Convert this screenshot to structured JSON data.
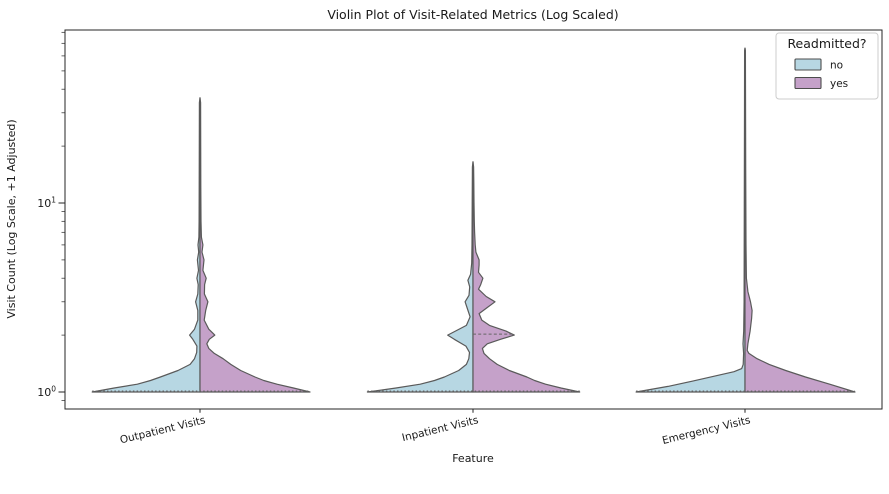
{
  "figure": {
    "title": "Violin Plot of Visit-Related Metrics (Log Scaled)",
    "xlabel": "Feature",
    "ylabel": "Visit Count (Log Scale, +1 Adjusted)"
  },
  "legend": {
    "title": "Readmitted?",
    "entries": [
      {
        "label": "no",
        "color": "#b7d7e3"
      },
      {
        "label": "yes",
        "color": "#c5a1c9"
      }
    ]
  },
  "colors": {
    "violin_edge": "#5a5a5a",
    "axis": "#262626",
    "inner_line": "#666666",
    "legend_border": "#cccccc"
  },
  "chart_data": {
    "type": "violin",
    "title": "Violin Plot of Visit-Related Metrics (Log Scaled)",
    "xlabel": "Feature",
    "ylabel": "Visit Count (Log Scale, +1 Adjusted)",
    "yscale": "log",
    "ylim": [
      0.81,
      82
    ],
    "categories": [
      "Outpatient Visits",
      "Inpatient Visits",
      "Emergency Visits"
    ],
    "groups": [
      "no",
      "yes"
    ],
    "y_axis": {
      "major_ticks": [
        {
          "value": 1,
          "base": "10",
          "exp": "0"
        },
        {
          "value": 10,
          "base": "10",
          "exp": "1"
        }
      ],
      "minor_ticks": [
        0.9,
        2,
        3,
        4,
        5,
        6,
        7,
        8,
        9,
        20,
        30,
        40,
        50,
        60,
        70,
        80
      ]
    },
    "series": [
      {
        "category": "Outpatient Visits",
        "group": "no",
        "side": "left",
        "max_value": 36,
        "profile": [
          [
            1.0,
            0.98
          ],
          [
            1.05,
            0.78
          ],
          [
            1.1,
            0.57
          ],
          [
            1.15,
            0.45
          ],
          [
            1.2,
            0.36
          ],
          [
            1.3,
            0.2
          ],
          [
            1.4,
            0.09
          ],
          [
            1.5,
            0.05
          ],
          [
            1.62,
            0.03
          ],
          [
            1.75,
            0.028
          ],
          [
            1.9,
            0.065
          ],
          [
            2.0,
            0.095
          ],
          [
            2.15,
            0.05
          ],
          [
            2.4,
            0.02
          ],
          [
            2.7,
            0.02
          ],
          [
            3.0,
            0.04
          ],
          [
            3.3,
            0.02
          ],
          [
            3.7,
            0.016
          ],
          [
            4.0,
            0.028
          ],
          [
            4.4,
            0.014
          ],
          [
            5.0,
            0.024
          ],
          [
            5.5,
            0.012
          ],
          [
            6.0,
            0.018
          ],
          [
            6.6,
            0.01
          ],
          [
            8.0,
            0.008
          ],
          [
            12.0,
            0.007
          ],
          [
            20.0,
            0.006
          ],
          [
            34.0,
            0.005
          ],
          [
            36.0,
            0.0
          ]
        ]
      },
      {
        "category": "Outpatient Visits",
        "group": "yes",
        "side": "right",
        "max_value": 36,
        "profile": [
          [
            1.0,
            1.0
          ],
          [
            1.05,
            0.85
          ],
          [
            1.1,
            0.7
          ],
          [
            1.15,
            0.58
          ],
          [
            1.2,
            0.5
          ],
          [
            1.3,
            0.37
          ],
          [
            1.4,
            0.28
          ],
          [
            1.5,
            0.21
          ],
          [
            1.6,
            0.13
          ],
          [
            1.7,
            0.08
          ],
          [
            1.8,
            0.062
          ],
          [
            1.9,
            0.085
          ],
          [
            2.0,
            0.135
          ],
          [
            2.15,
            0.08
          ],
          [
            2.4,
            0.038
          ],
          [
            2.7,
            0.052
          ],
          [
            3.0,
            0.072
          ],
          [
            3.3,
            0.04
          ],
          [
            3.7,
            0.042
          ],
          [
            4.0,
            0.056
          ],
          [
            4.4,
            0.026
          ],
          [
            5.0,
            0.036
          ],
          [
            5.5,
            0.018
          ],
          [
            6.0,
            0.026
          ],
          [
            6.6,
            0.013
          ],
          [
            8.0,
            0.009
          ],
          [
            12.0,
            0.007
          ],
          [
            20.0,
            0.006
          ],
          [
            34.0,
            0.005
          ],
          [
            36.0,
            0.0
          ]
        ]
      },
      {
        "category": "Inpatient Visits",
        "group": "no",
        "side": "left",
        "max_value": 16,
        "profile": [
          [
            1.0,
            0.96
          ],
          [
            1.05,
            0.7
          ],
          [
            1.1,
            0.48
          ],
          [
            1.15,
            0.35
          ],
          [
            1.2,
            0.26
          ],
          [
            1.3,
            0.13
          ],
          [
            1.4,
            0.06
          ],
          [
            1.5,
            0.038
          ],
          [
            1.62,
            0.032
          ],
          [
            1.75,
            0.065
          ],
          [
            1.9,
            0.17
          ],
          [
            2.0,
            0.23
          ],
          [
            2.1,
            0.16
          ],
          [
            2.25,
            0.06
          ],
          [
            2.5,
            0.026
          ],
          [
            2.75,
            0.05
          ],
          [
            3.0,
            0.072
          ],
          [
            3.25,
            0.036
          ],
          [
            3.6,
            0.03
          ],
          [
            3.9,
            0.046
          ],
          [
            4.2,
            0.022
          ],
          [
            4.8,
            0.012
          ],
          [
            6.0,
            0.009
          ],
          [
            10.0,
            0.007
          ],
          [
            15.5,
            0.005
          ],
          [
            16.5,
            0.0
          ]
        ]
      },
      {
        "category": "Inpatient Visits",
        "group": "yes",
        "side": "right",
        "max_value": 16,
        "profile": [
          [
            1.0,
            0.97
          ],
          [
            1.05,
            0.8
          ],
          [
            1.1,
            0.66
          ],
          [
            1.15,
            0.56
          ],
          [
            1.2,
            0.49
          ],
          [
            1.3,
            0.33
          ],
          [
            1.4,
            0.22
          ],
          [
            1.5,
            0.15
          ],
          [
            1.6,
            0.1
          ],
          [
            1.7,
            0.085
          ],
          [
            1.8,
            0.13
          ],
          [
            1.9,
            0.25
          ],
          [
            2.0,
            0.375
          ],
          [
            2.1,
            0.3
          ],
          [
            2.25,
            0.15
          ],
          [
            2.4,
            0.08
          ],
          [
            2.6,
            0.055
          ],
          [
            2.8,
            0.13
          ],
          [
            3.0,
            0.2
          ],
          [
            3.2,
            0.12
          ],
          [
            3.5,
            0.05
          ],
          [
            3.7,
            0.07
          ],
          [
            4.0,
            0.09
          ],
          [
            4.3,
            0.05
          ],
          [
            4.7,
            0.055
          ],
          [
            5.0,
            0.055
          ],
          [
            5.5,
            0.026
          ],
          [
            6.0,
            0.02
          ],
          [
            7.0,
            0.015
          ],
          [
            8.0,
            0.012
          ],
          [
            10.0,
            0.009
          ],
          [
            13.0,
            0.007
          ],
          [
            15.5,
            0.005
          ],
          [
            16.5,
            0.0
          ]
        ]
      },
      {
        "category": "Emergency Visits",
        "group": "no",
        "side": "left",
        "max_value": 66,
        "profile": [
          [
            1.0,
            0.99
          ],
          [
            1.07,
            0.7
          ],
          [
            1.14,
            0.48
          ],
          [
            1.22,
            0.26
          ],
          [
            1.28,
            0.1
          ],
          [
            1.33,
            0.03
          ],
          [
            1.4,
            0.016
          ],
          [
            1.6,
            0.013
          ],
          [
            1.8,
            0.018
          ],
          [
            2.1,
            0.012
          ],
          [
            3.0,
            0.008
          ],
          [
            10.0,
            0.006
          ],
          [
            30.0,
            0.005
          ],
          [
            64.0,
            0.004
          ],
          [
            66.0,
            0.0
          ]
        ]
      },
      {
        "category": "Emergency Visits",
        "group": "yes",
        "side": "right",
        "max_value": 66,
        "profile": [
          [
            1.0,
            1.0
          ],
          [
            1.1,
            0.77
          ],
          [
            1.2,
            0.55
          ],
          [
            1.3,
            0.37
          ],
          [
            1.4,
            0.22
          ],
          [
            1.5,
            0.11
          ],
          [
            1.6,
            0.035
          ],
          [
            1.66,
            0.02
          ],
          [
            1.8,
            0.026
          ],
          [
            2.1,
            0.046
          ],
          [
            2.45,
            0.06
          ],
          [
            2.7,
            0.065
          ],
          [
            3.0,
            0.05
          ],
          [
            3.4,
            0.026
          ],
          [
            4.0,
            0.013
          ],
          [
            6.0,
            0.009
          ],
          [
            15.0,
            0.006
          ],
          [
            40.0,
            0.005
          ],
          [
            64.0,
            0.004
          ],
          [
            66.0,
            0.0
          ]
        ]
      }
    ],
    "inner_quartile_lines": [
      {
        "category_index": 0,
        "value": 1.0,
        "sides": "both",
        "style": "dotted"
      },
      {
        "category_index": 1,
        "value": 1.0,
        "sides": "both",
        "style": "dotted"
      },
      {
        "category_index": 1,
        "value": 2.0,
        "sides": "right",
        "style": "dashed"
      },
      {
        "category_index": 2,
        "value": 1.0,
        "sides": "both",
        "style": "dotted"
      }
    ],
    "legend_position": "upper right",
    "grid": false
  }
}
